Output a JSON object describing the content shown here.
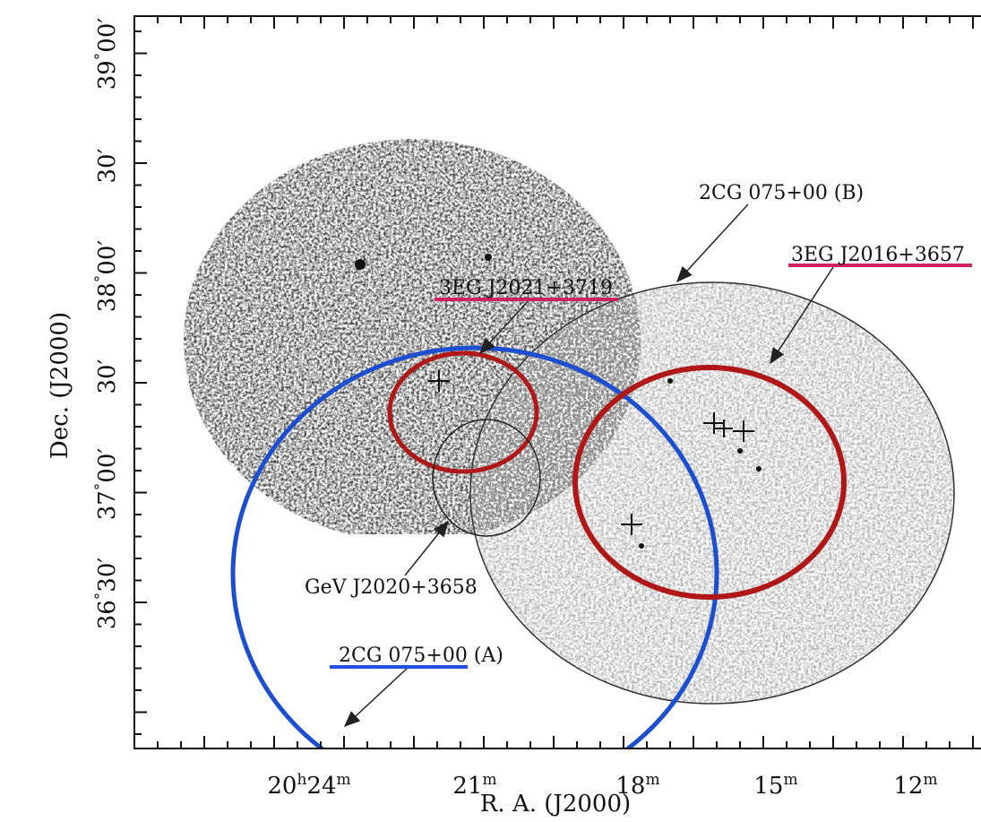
{
  "axes": {
    "x_label": "R. A. (J2000)",
    "y_label": "Dec. (J2000)",
    "x_ticks": [
      [
        {
          "text": "20"
        },
        {
          "text": "h",
          "sup": true
        },
        {
          "text": "24"
        },
        {
          "text": "m",
          "sup": true
        }
      ],
      [
        {
          "text": "21"
        },
        {
          "text": "m",
          "sup": true
        }
      ],
      [
        {
          "text": "18"
        },
        {
          "text": "m",
          "sup": true
        }
      ],
      [
        {
          "text": "15"
        },
        {
          "text": "m",
          "sup": true
        }
      ],
      [
        {
          "text": "12"
        },
        {
          "text": "m",
          "sup": true
        }
      ]
    ],
    "y_ticks": [
      [
        {
          "text": "39"
        },
        {
          "text": "°",
          "sup": true
        },
        {
          "text": "00′"
        }
      ],
      [
        {
          "text": "30′"
        }
      ],
      [
        {
          "text": "38"
        },
        {
          "text": "°",
          "sup": true
        },
        {
          "text": "00′"
        }
      ],
      [
        {
          "text": "30′"
        }
      ],
      [
        {
          "text": "37"
        },
        {
          "text": "°",
          "sup": true
        },
        {
          "text": "00′"
        }
      ],
      [
        {
          "text": "36"
        },
        {
          "text": "°",
          "sup": true
        },
        {
          "text": "30′"
        }
      ]
    ]
  },
  "annotations": {
    "cg_b": "2CG 075+00 (B)",
    "eg_2016": "3EG J2016+3657",
    "eg_2021": "3EG J2021+3719",
    "gev": "GeV J2020+3658",
    "cg_a": "2CG 075+00 (A)"
  }
}
